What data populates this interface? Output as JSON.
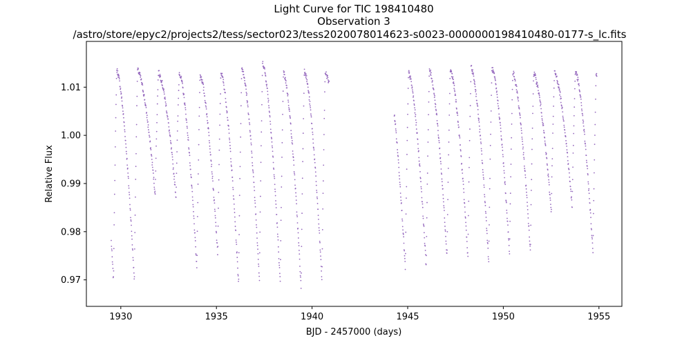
{
  "chart_data": {
    "type": "scatter",
    "title_lines": [
      "Light Curve for TIC 198410480",
      "Observation 3",
      "/astro/store/epyc2/projects2/tess/sector023/tess2020078014623-s0023-0000000198410480-0177-s_lc.fits"
    ],
    "xlabel": "BJD - 2457000 (days)",
    "ylabel": "Relative Flux",
    "xlim": [
      1928.2,
      1956.2
    ],
    "ylim": [
      0.9645,
      1.0195
    ],
    "xticks": [
      1930,
      1935,
      1940,
      1945,
      1950,
      1955
    ],
    "yticks": [
      0.97,
      0.98,
      0.99,
      1.0,
      1.01
    ],
    "ytick_labels": [
      "0.97",
      "0.98",
      "0.99",
      "1.00",
      "1.01"
    ],
    "grid": false,
    "marker_color": "#9467bd",
    "series": [
      {
        "segments": [
          [
            1929.5,
            1940.9
          ],
          [
            1944.3,
            1954.9
          ]
        ],
        "period_days": 1.09,
        "epoch": 1929.62,
        "pulse_peaks": [
          1.0125,
          1.0135,
          1.0135,
          1.013,
          1.013,
          1.0125,
          1.013,
          1.014,
          1.015,
          1.013,
          1.0135,
          1.013,
          1.0135,
          1.013,
          1.013,
          1.013,
          1.0135,
          1.0135,
          1.014,
          1.0138,
          1.013,
          1.0128,
          1.013,
          1.0132,
          1.013,
          1.0128,
          1.013,
          1.0125,
          1.012,
          1.013
        ],
        "pulse_minima": [
          0.989,
          0.9695,
          0.9695,
          0.9875,
          0.987,
          0.972,
          0.975,
          0.969,
          0.97,
          0.969,
          0.968,
          0.9695,
          0.9875,
          0.9875,
          0.971,
          0.972,
          0.9725,
          0.9745,
          0.9745,
          0.9735,
          0.975,
          0.9755,
          0.984,
          0.985,
          0.9755,
          0.985,
          0.9855,
          0.9855,
          0.986,
          0.9865
        ]
      }
    ]
  }
}
